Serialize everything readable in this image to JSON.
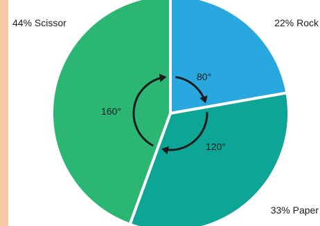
{
  "chart_data": {
    "type": "pie",
    "slices": [
      {
        "label": "Rock",
        "percent": 22,
        "angle": 80,
        "color": "#29a8e0"
      },
      {
        "label": "Paper",
        "percent": 33,
        "angle": 120,
        "color": "#0da596"
      },
      {
        "label": "Scissor",
        "percent": 44,
        "angle": 160,
        "color": "#2bb673"
      }
    ],
    "labels": {
      "rock": "22% Rock",
      "paper": "33% Paper",
      "scissor": "44% Scissor"
    },
    "angle_labels": {
      "rock": "80°",
      "paper": "120°",
      "scissor": "160°"
    },
    "colors": {
      "background": "#f7c9a3",
      "panel": "#ffffff",
      "arrow": "#1a1a1a"
    }
  }
}
